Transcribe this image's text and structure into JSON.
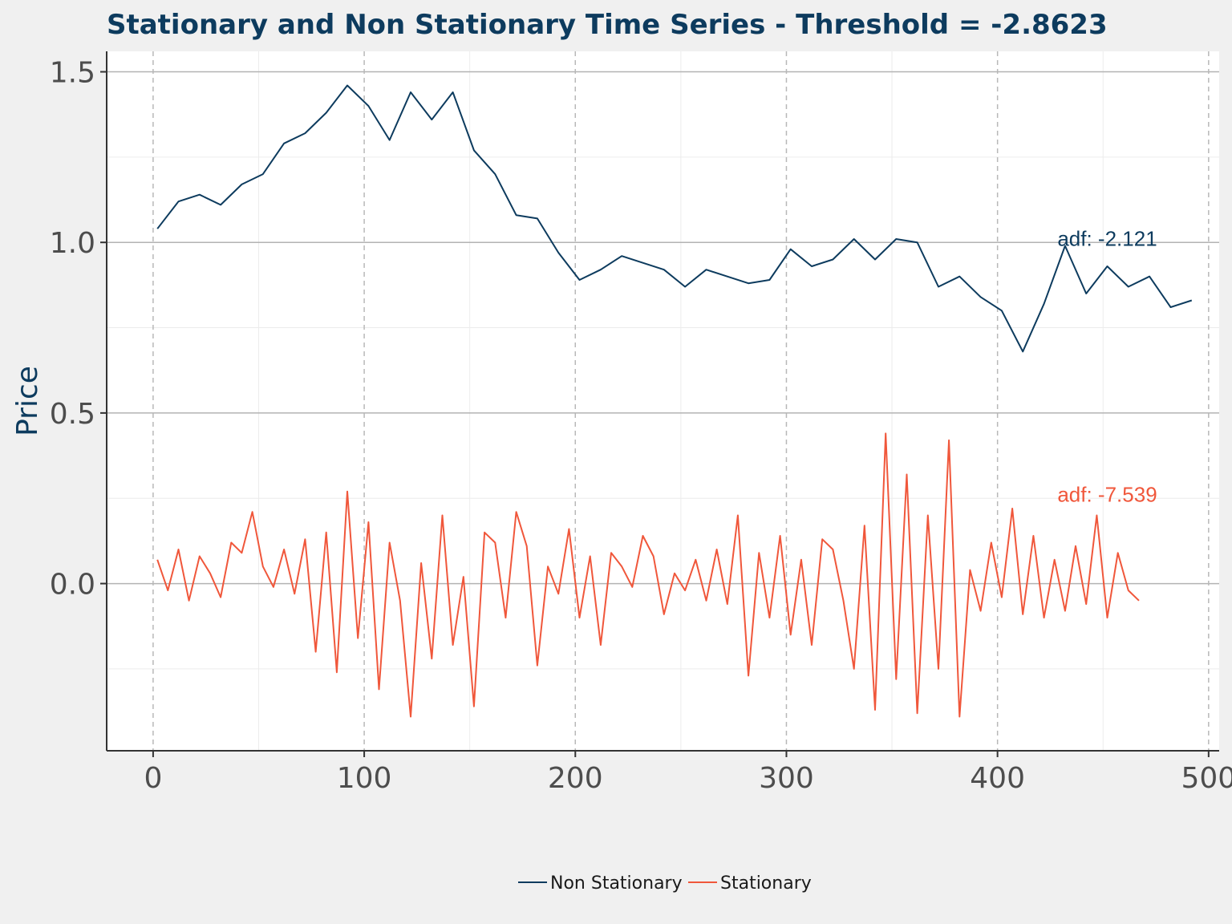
{
  "colors": {
    "non_stationary": "#0d3b5e",
    "stationary": "#f0573b",
    "title": "#0d3b5e",
    "ylabel": "#0d3b5e",
    "panel_background": "#ffffff",
    "plot_background": "#f0f0f0",
    "grid_major_y": "#b3b3b3",
    "grid_minor": "#ececec",
    "grid_major_x": "#b8b8b8"
  },
  "chart_data": {
    "type": "line",
    "title": "Stationary and Non Stationary Time Series - Threshold = -2.8623",
    "xlabel": "",
    "ylabel": "Price",
    "xlim": [
      -22,
      505
    ],
    "ylim": [
      -0.49,
      1.56
    ],
    "x_ticks": [
      0,
      100,
      200,
      300,
      400,
      500
    ],
    "x_tick_labels": [
      "0",
      "100",
      "200",
      "300",
      "400",
      "500"
    ],
    "y_ticks": [
      0.0,
      0.5,
      1.0,
      1.5
    ],
    "y_tick_labels": [
      "0.0",
      "0.5",
      "1.0",
      "1.5"
    ],
    "grid": true,
    "x_grid_style": "dashed",
    "legend_position": "bottom",
    "annotations": [
      {
        "text": "adf: -2.121",
        "x": 452,
        "y": 0.99,
        "series": "Non Stationary"
      },
      {
        "text": "adf: -7.539",
        "x": 452,
        "y": 0.24,
        "series": "Stationary"
      }
    ],
    "series": [
      {
        "name": "Non Stationary",
        "x_start": 2,
        "x_step": 10,
        "values": [
          1.04,
          1.12,
          1.14,
          1.11,
          1.17,
          1.2,
          1.29,
          1.32,
          1.38,
          1.46,
          1.4,
          1.3,
          1.44,
          1.36,
          1.44,
          1.27,
          1.2,
          1.08,
          1.07,
          0.97,
          0.89,
          0.92,
          0.96,
          0.94,
          0.92,
          0.87,
          0.92,
          0.9,
          0.88,
          0.89,
          0.98,
          0.93,
          0.95,
          1.01,
          0.95,
          1.01,
          1.0,
          0.87,
          0.9,
          0.84,
          0.8,
          0.68,
          0.82,
          0.99,
          0.85,
          0.93,
          0.87,
          0.9,
          0.81,
          0.83
        ]
      },
      {
        "name": "Stationary",
        "x_start": 2,
        "x_step": 5,
        "values": [
          0.07,
          -0.02,
          0.1,
          -0.05,
          0.08,
          0.03,
          -0.04,
          0.12,
          0.09,
          0.21,
          0.05,
          -0.01,
          0.1,
          -0.03,
          0.13,
          -0.2,
          0.15,
          -0.26,
          0.27,
          -0.16,
          0.18,
          -0.31,
          0.12,
          -0.05,
          -0.39,
          0.06,
          -0.22,
          0.2,
          -0.18,
          0.02,
          -0.36,
          0.15,
          0.12,
          -0.1,
          0.21,
          0.11,
          -0.24,
          0.05,
          -0.03,
          0.16,
          -0.1,
          0.08,
          -0.18,
          0.09,
          0.05,
          -0.01,
          0.14,
          0.08,
          -0.09,
          0.03,
          -0.02,
          0.07,
          -0.05,
          0.1,
          -0.06,
          0.2,
          -0.27,
          0.09,
          -0.1,
          0.14,
          -0.15,
          0.07,
          -0.18,
          0.13,
          0.1,
          -0.05,
          -0.25,
          0.17,
          -0.37,
          0.44,
          -0.28,
          0.32,
          -0.38,
          0.2,
          -0.25,
          0.42,
          -0.39,
          0.04,
          -0.08,
          0.12,
          -0.04,
          0.22,
          -0.09,
          0.14,
          -0.1,
          0.07,
          -0.08,
          0.11,
          -0.06,
          0.2,
          -0.1,
          0.09,
          -0.02,
          -0.05
        ]
      }
    ]
  },
  "legend": {
    "items": [
      {
        "label": "Non Stationary"
      },
      {
        "label": "Stationary"
      }
    ]
  }
}
